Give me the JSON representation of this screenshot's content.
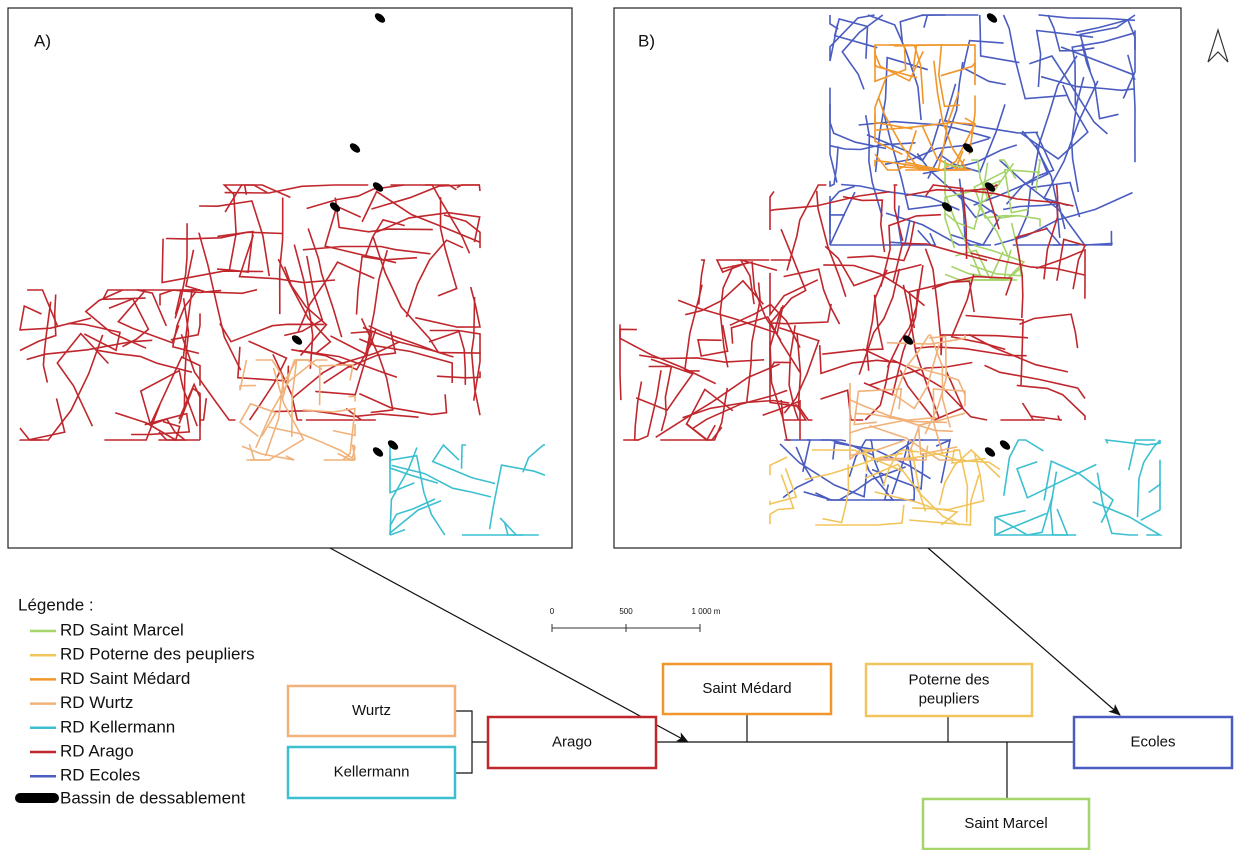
{
  "panels": [
    {
      "label": "A)"
    },
    {
      "label": "B)"
    }
  ],
  "scale_bar": {
    "labels": [
      "0",
      "500",
      "1 000 m"
    ]
  },
  "legend": {
    "title": "Légende :",
    "items": [
      {
        "label": "RD Saint Marcel",
        "color": "#a5d46a"
      },
      {
        "label": "RD Poterne des peupliers",
        "color": "#f2c55c"
      },
      {
        "label": "RD Saint Médard",
        "color": "#f0962a"
      },
      {
        "label": "RD Wurtz",
        "color": "#f0b27a"
      },
      {
        "label": "RD Kellermann",
        "color": "#3cc0d0"
      },
      {
        "label": "RD Arago",
        "color": "#c0272d"
      },
      {
        "label": "RD Ecoles",
        "color": "#4a5cc0"
      }
    ],
    "basin": {
      "label": "Bassin de dessablement",
      "color": "#000000"
    }
  },
  "boxes": [
    {
      "lines": [
        "Wurtz"
      ],
      "color": "#f0b27a"
    },
    {
      "lines": [
        "Kellermann"
      ],
      "color": "#3cc0d0"
    },
    {
      "lines": [
        "Arago"
      ],
      "color": "#c0272d"
    },
    {
      "lines": [
        "Saint Médard"
      ],
      "color": "#f0962a"
    },
    {
      "lines": [
        "Poterne des",
        "peupliers"
      ],
      "color": "#f2c55c"
    },
    {
      "lines": [
        "Ecoles"
      ],
      "color": "#4a5cc0"
    },
    {
      "lines": [
        "Saint Marcel"
      ],
      "color": "#a5d46a"
    }
  ]
}
